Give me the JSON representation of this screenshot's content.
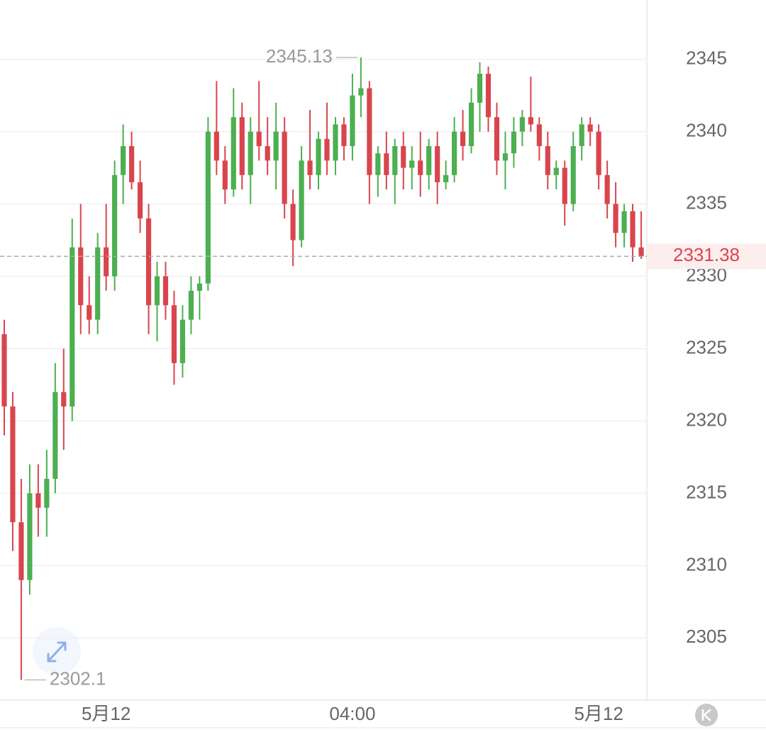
{
  "chart_data": {
    "type": "candlestick",
    "up_color": "#4caf50",
    "down_color": "#d9454d",
    "open": [
      2326,
      2321,
      2313,
      2309,
      2315,
      2314,
      2316,
      2322,
      2321,
      2332,
      2328,
      2327,
      2332,
      2330,
      2337,
      2339,
      2336.5,
      2334,
      2328,
      2330,
      2328,
      2324,
      2327,
      2329,
      2329.5,
      2340,
      2338,
      2336,
      2341,
      2337,
      2340,
      2339,
      2338,
      2340,
      2335,
      2332.5,
      2338,
      2337,
      2339.5,
      2338,
      2340.5,
      2339,
      2342.5,
      2343,
      2337,
      2338.5,
      2337,
      2339,
      2337.5,
      2338,
      2337,
      2339,
      2336.5,
      2337,
      2340,
      2339,
      2342,
      2344,
      2341,
      2338,
      2338.5,
      2340,
      2341,
      2340.5,
      2339,
      2337,
      2337.5,
      2335,
      2339,
      2340.5,
      2340,
      2337,
      2335,
      2333,
      2334.5,
      2332
    ],
    "high": [
      2327,
      2322,
      2316,
      2317,
      2317,
      2318,
      2324,
      2325,
      2334,
      2335,
      2330,
      2333,
      2335,
      2338,
      2340.5,
      2340,
      2338,
      2335,
      2331,
      2331,
      2329,
      2328,
      2330,
      2330,
      2341,
      2343.5,
      2339,
      2343,
      2342,
      2341,
      2343.5,
      2341,
      2342,
      2341,
      2336,
      2339,
      2341.5,
      2340,
      2342,
      2341,
      2341,
      2344,
      2345.13,
      2343.5,
      2339,
      2340,
      2339.5,
      2340,
      2339,
      2340,
      2339.5,
      2340,
      2338,
      2341,
      2341.5,
      2343,
      2344.8,
      2344.5,
      2342,
      2340,
      2341,
      2341.5,
      2343.8,
      2341,
      2340,
      2338,
      2338,
      2340,
      2341,
      2341,
      2340.5,
      2338,
      2336.5,
      2335,
      2335,
      2334.5
    ],
    "low": [
      2319,
      2311,
      2302.1,
      2308,
      2312,
      2312,
      2315,
      2318,
      2320,
      2326,
      2326,
      2326,
      2329,
      2329,
      2335,
      2336,
      2333,
      2326,
      2325.5,
      2327,
      2322.5,
      2323,
      2326,
      2327,
      2329,
      2337,
      2335,
      2335.5,
      2336,
      2335,
      2338,
      2337,
      2336,
      2334,
      2330.7,
      2332,
      2336,
      2336,
      2337,
      2337,
      2338,
      2338,
      2341,
      2335,
      2335.5,
      2336,
      2335,
      2336,
      2336,
      2335.5,
      2336,
      2335,
      2336,
      2336.5,
      2338,
      2338.5,
      2340,
      2340,
      2337,
      2336,
      2337.5,
      2339,
      2340,
      2338,
      2336,
      2336,
      2333.5,
      2334.5,
      2338,
      2339,
      2336,
      2334,
      2332,
      2332,
      2331,
      2331.2
    ],
    "close": [
      2321,
      2313,
      2309,
      2315,
      2314,
      2316,
      2322,
      2321,
      2332,
      2328,
      2327,
      2332,
      2330,
      2337,
      2339,
      2336.5,
      2334,
      2328,
      2330,
      2328,
      2324,
      2327,
      2329,
      2329.5,
      2340,
      2338,
      2336,
      2341,
      2337,
      2340,
      2339,
      2338,
      2340,
      2335,
      2332.5,
      2338,
      2337,
      2339.5,
      2338,
      2340.5,
      2339,
      2342.5,
      2343,
      2337,
      2338.5,
      2337,
      2339,
      2337.5,
      2338,
      2337,
      2339,
      2336.5,
      2337,
      2340,
      2339,
      2342,
      2344,
      2341,
      2338,
      2338.5,
      2340,
      2341,
      2340.5,
      2339,
      2337,
      2337.5,
      2335,
      2339,
      2340.5,
      2340,
      2337,
      2335,
      2333,
      2334.5,
      2332,
      2331.38
    ],
    "ylim": [
      2300.8,
      2349.1
    ],
    "yticks": [
      2305,
      2310,
      2315,
      2320,
      2325,
      2330,
      2335,
      2340,
      2345
    ],
    "xticks": [
      {
        "value": 12,
        "label": "5月12"
      },
      {
        "value": 41,
        "label": "04:00"
      },
      {
        "value": 70,
        "label": "5月12"
      }
    ],
    "grid": true
  }
}
